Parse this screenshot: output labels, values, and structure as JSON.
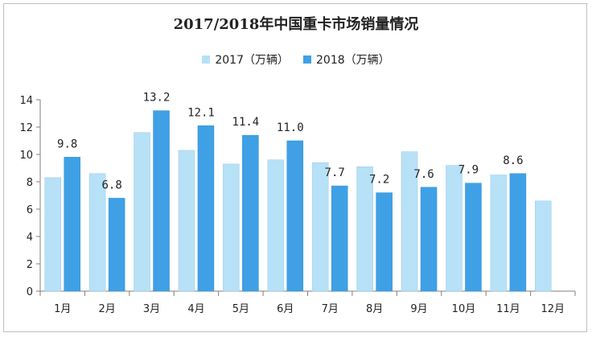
{
  "chart_data": {
    "type": "bar",
    "title": "2017/2018年中国重卡市场销量情况",
    "categories": [
      "1月",
      "2月",
      "3月",
      "4月",
      "5月",
      "6月",
      "7月",
      "8月",
      "9月",
      "10月",
      "11月",
      "12月"
    ],
    "series": [
      {
        "name": "2017（万辆）",
        "color": "#b7e1f7",
        "values": [
          8.3,
          8.6,
          11.6,
          10.3,
          9.3,
          9.6,
          9.4,
          9.1,
          10.2,
          9.2,
          8.5,
          6.6
        ]
      },
      {
        "name": "2018（万辆）",
        "color": "#3fa0e6",
        "values": [
          9.8,
          6.8,
          13.2,
          12.1,
          11.4,
          11.0,
          7.7,
          7.2,
          7.6,
          7.9,
          8.6,
          null
        ],
        "labels": [
          "9.8",
          "6.8",
          "13.2",
          "12.1",
          "11.4",
          "11.0",
          "7.7",
          "7.2",
          "7.6",
          "7.9",
          "8.6",
          ""
        ]
      }
    ],
    "ylim": [
      0,
      14
    ],
    "yticks": [
      0,
      2,
      4,
      6,
      8,
      10,
      12,
      14
    ],
    "legend": "top-center",
    "grid": false
  }
}
